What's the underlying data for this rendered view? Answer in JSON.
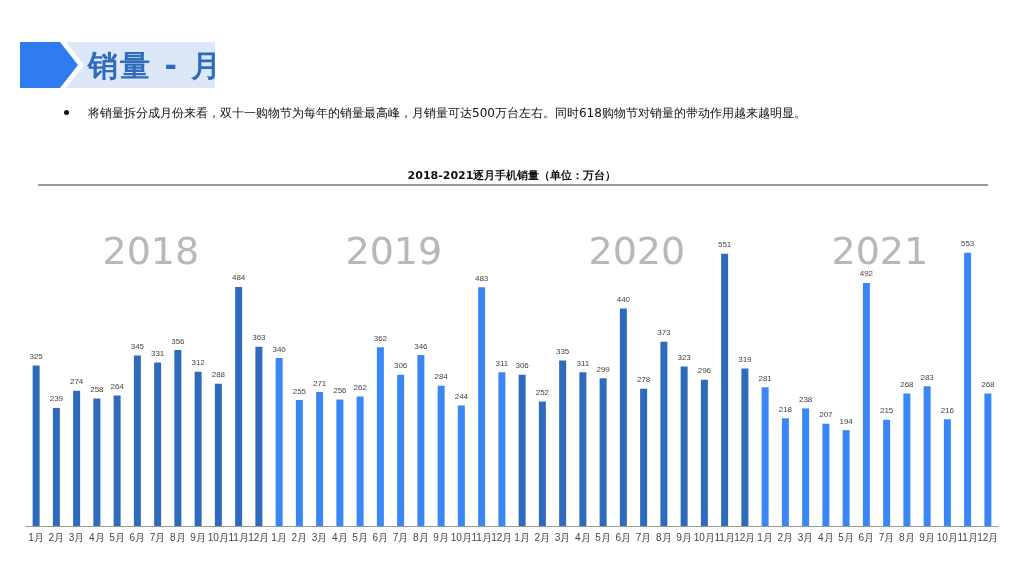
{
  "chart_data": {
    "type": "bar",
    "title": "销量 - 月",
    "subtitle": "将销量拆分成月份来看，双十一购物节为每年的销量最高峰，月销量可达500万台左右。同时618购物节对销量的带动作用越来越明显。",
    "annotations": [
      "2018-2021逐月手机销量（单位：万台）",
      "2018",
      "2019",
      "2020",
      "2021"
    ],
    "categories": [
      "1月",
      "2月",
      "3月",
      "4月",
      "5月",
      "6月",
      "7月",
      "8月",
      "9月",
      "10月",
      "11月",
      "12月",
      "1月",
      "2月",
      "3月",
      "4月",
      "5月",
      "6月",
      "7月",
      "8月",
      "9月",
      "10月",
      "11月",
      "12月",
      "1月",
      "2月",
      "3月",
      "4月",
      "5月",
      "6月",
      "7月",
      "8月",
      "9月",
      "10月",
      "11月",
      "12月",
      "1月",
      "2月",
      "3月",
      "4月",
      "5月",
      "6月",
      "7月",
      "8月",
      "9月",
      "10月",
      "11月",
      "12月"
    ],
    "values": [
      325,
      239,
      274,
      258,
      264,
      345,
      331,
      356,
      312,
      288,
      484,
      363,
      340,
      255,
      271,
      256,
      262,
      362,
      306,
      346,
      284,
      244,
      483,
      311,
      306,
      252,
      335,
      311,
      299,
      440,
      278,
      373,
      323,
      296,
      551,
      319,
      281,
      218,
      238,
      207,
      194,
      492,
      215,
      268,
      283,
      216,
      553,
      268
    ],
    "colors": [
      "#2f6bbd",
      "#2f6bbd",
      "#2f6bbd",
      "#2f6bbd",
      "#2f6bbd",
      "#2f6bbd",
      "#2f6bbd",
      "#2f6bbd",
      "#2f6bbd",
      "#2f6bbd",
      "#2f6bbd",
      "#2f6bbd",
      "#3a86f7",
      "#3a86f7",
      "#3a86f7",
      "#3a86f7",
      "#3a86f7",
      "#3a86f7",
      "#3a86f7",
      "#3a86f7",
      "#3a86f7",
      "#3a86f7",
      "#3a86f7",
      "#3a86f7",
      "#2f6bbd",
      "#2f6bbd",
      "#2f6bbd",
      "#2f6bbd",
      "#2f6bbd",
      "#2f6bbd",
      "#2f6bbd",
      "#2f6bbd",
      "#2f6bbd",
      "#2f6bbd",
      "#2f6bbd",
      "#2f6bbd",
      "#3a86f7",
      "#3a86f7",
      "#3a86f7",
      "#3a86f7",
      "#3a86f7",
      "#3a86f7",
      "#3a86f7",
      "#3a86f7",
      "#3a86f7",
      "#3a86f7",
      "#3a86f7",
      "#3a86f7"
    ],
    "data_labels": true
  }
}
